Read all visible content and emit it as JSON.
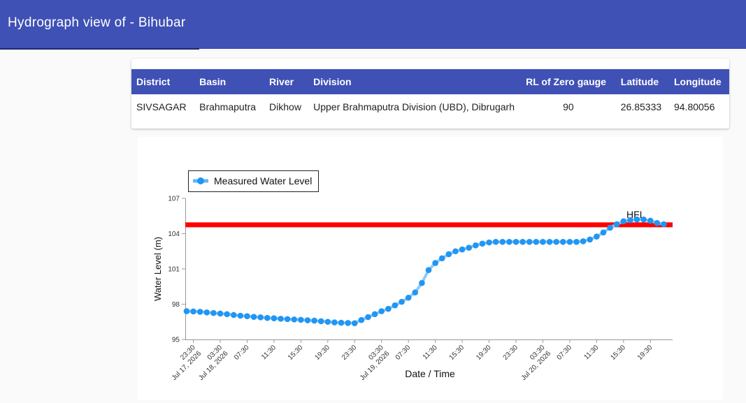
{
  "header": {
    "title": "Hydrograph view of - Bihubar"
  },
  "table": {
    "columns": [
      "District",
      "Basin",
      "River",
      "Division",
      "RL of Zero gauge",
      "Latitude",
      "Longitude"
    ],
    "row": [
      "SIVSAGAR",
      "Brahmaputra",
      "Dikhow",
      "Upper Brahmaputra Division (UBD), Dibrugarh",
      "90",
      "26.85333",
      "94.80056"
    ]
  },
  "colors": {
    "header_bg": "#3f51b5",
    "series": "#2196f3",
    "series_line": "#90caf9",
    "hfl": "#ff0000"
  },
  "chart_data": {
    "type": "line",
    "legend": "Measured Water Level",
    "legend_position": "top-left",
    "xlabel": "Date / Time",
    "ylabel": "Water Level (m)",
    "ylim": [
      95,
      107
    ],
    "yticks": [
      "95",
      "98",
      "101",
      "104",
      "107"
    ],
    "grid": false,
    "hfl": {
      "label": "HFL",
      "value": 104.75
    },
    "xticks": [
      {
        "label": "23:30",
        "date": "Jul 17, 2026",
        "hour": 23.5
      },
      {
        "label": "03:30",
        "date": "Jul 18, 2026",
        "hour": 27.5
      },
      {
        "label": "07:30",
        "date": "",
        "hour": 31.5
      },
      {
        "label": "11:30",
        "date": "",
        "hour": 35.5
      },
      {
        "label": "15:30",
        "date": "",
        "hour": 39.5
      },
      {
        "label": "19:30",
        "date": "",
        "hour": 43.5
      },
      {
        "label": "23:30",
        "date": "",
        "hour": 47.5
      },
      {
        "label": "03:30",
        "date": "Jul 19, 2026",
        "hour": 51.5
      },
      {
        "label": "07:30",
        "date": "",
        "hour": 55.5
      },
      {
        "label": "11:30",
        "date": "",
        "hour": 59.5
      },
      {
        "label": "15:30",
        "date": "",
        "hour": 63.5
      },
      {
        "label": "19:30",
        "date": "",
        "hour": 67.5
      },
      {
        "label": "23:30",
        "date": "",
        "hour": 71.5
      },
      {
        "label": "03:30",
        "date": "Jul 20, 2026",
        "hour": 75.5
      },
      {
        "label": "07:30",
        "date": "",
        "hour": 79.5
      },
      {
        "label": "11:30",
        "date": "",
        "hour": 83.5
      },
      {
        "label": "15:30",
        "date": "",
        "hour": 87.5
      },
      {
        "label": "19:30",
        "date": "",
        "hour": 91.5
      }
    ],
    "xlim": [
      22.3,
      94.8
    ],
    "x": [
      22.5,
      23.5,
      24.5,
      25.5,
      26.5,
      27.5,
      28.5,
      29.5,
      30.5,
      31.5,
      32.5,
      33.5,
      34.5,
      35.5,
      36.5,
      37.5,
      38.5,
      39.5,
      40.5,
      41.5,
      42.5,
      43.5,
      44.5,
      45.5,
      46.5,
      47.5,
      48.5,
      49.5,
      50.5,
      51.5,
      52.5,
      53.5,
      54.5,
      55.5,
      56.5,
      57.5,
      58.5,
      59.5,
      60.5,
      61.5,
      62.5,
      63.5,
      64.5,
      65.5,
      66.5,
      67.5,
      68.5,
      69.5,
      70.5,
      71.5,
      72.5,
      73.5,
      74.5,
      75.5,
      76.5,
      77.5,
      78.5,
      79.5,
      80.5,
      81.5,
      82.5,
      83.5,
      84.5,
      85.5,
      86.5,
      87.5,
      88.5,
      89.5,
      90.5,
      91.5,
      92.5,
      93.5
    ],
    "values": [
      97.4,
      97.38,
      97.35,
      97.3,
      97.25,
      97.2,
      97.15,
      97.08,
      97.02,
      96.98,
      96.92,
      96.88,
      96.83,
      96.8,
      96.76,
      96.73,
      96.7,
      96.67,
      96.63,
      96.6,
      96.55,
      96.5,
      96.45,
      96.42,
      96.4,
      96.38,
      96.65,
      96.9,
      97.15,
      97.4,
      97.6,
      97.9,
      98.2,
      98.55,
      99.0,
      99.8,
      100.9,
      101.5,
      101.9,
      102.25,
      102.5,
      102.65,
      102.8,
      103.0,
      103.15,
      103.25,
      103.3,
      103.3,
      103.3,
      103.3,
      103.3,
      103.3,
      103.3,
      103.3,
      103.3,
      103.3,
      103.3,
      103.3,
      103.3,
      103.35,
      103.5,
      103.75,
      104.1,
      104.5,
      104.8,
      105.05,
      105.15,
      105.2,
      105.2,
      105.1,
      104.9,
      104.8
    ]
  }
}
